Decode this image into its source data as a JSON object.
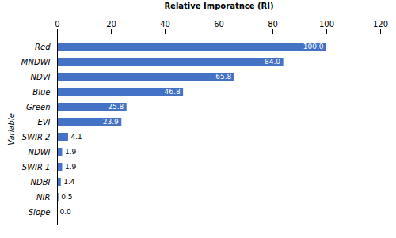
{
  "chart_data": {
    "type": "bar",
    "orientation": "horizontal",
    "categories": [
      "Slope",
      "NIR",
      "NDBI",
      "SWIR 1",
      "NDWI",
      "SWIR 2",
      "EVI",
      "Green",
      "Blue",
      "NDVI",
      "MNDWI",
      "Red"
    ],
    "values": [
      0.0,
      0.5,
      1.4,
      1.9,
      1.9,
      4.1,
      23.9,
      25.8,
      46.8,
      65.8,
      84.0,
      100.0
    ],
    "value_labels": [
      "0.0",
      "0.5",
      "1.4",
      "1.9",
      "1.9",
      "4.1",
      "23.9",
      "25.8",
      "46.8",
      "65.8",
      "84.0",
      "100.0"
    ],
    "data_labels": true,
    "color": "#4472C4",
    "xlabel": "Relative Imporatnce (RI)",
    "ylabel": "Variable",
    "xlim": [
      0,
      120
    ],
    "xticks": [
      0,
      20,
      40,
      60,
      80,
      100,
      120
    ]
  }
}
